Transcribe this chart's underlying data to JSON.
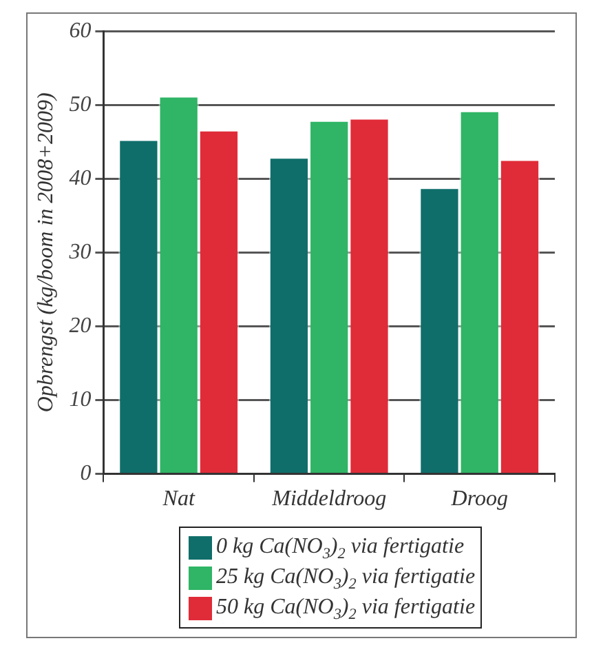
{
  "chart_data": {
    "type": "bar",
    "ylabel": "Opbrengst (kg/boom in 2008+2009)",
    "categories": [
      "Nat",
      "Middeldroog",
      "Droog"
    ],
    "series": [
      {
        "name": "0 kg Ca(NO$_{3}$)$_{2}$ via fertigatie",
        "color": "#0f6e6a",
        "values": [
          45.3,
          42.9,
          38.8
        ]
      },
      {
        "name": "25 kg Ca(NO$_{3}$)$_{2}$ via fertigatie",
        "color": "#2fb565",
        "values": [
          51.2,
          47.9,
          49.2
        ]
      },
      {
        "name": "50 kg Ca(NO$_{3}$)$_{2}$ via fertigatie",
        "color": "#e02c38",
        "values": [
          46.6,
          48.2,
          42.6
        ]
      }
    ],
    "ylim": [
      0,
      60
    ],
    "yticks": [
      0,
      10,
      20,
      30,
      40,
      50,
      60
    ],
    "grid": "y",
    "legend": "bottom"
  }
}
